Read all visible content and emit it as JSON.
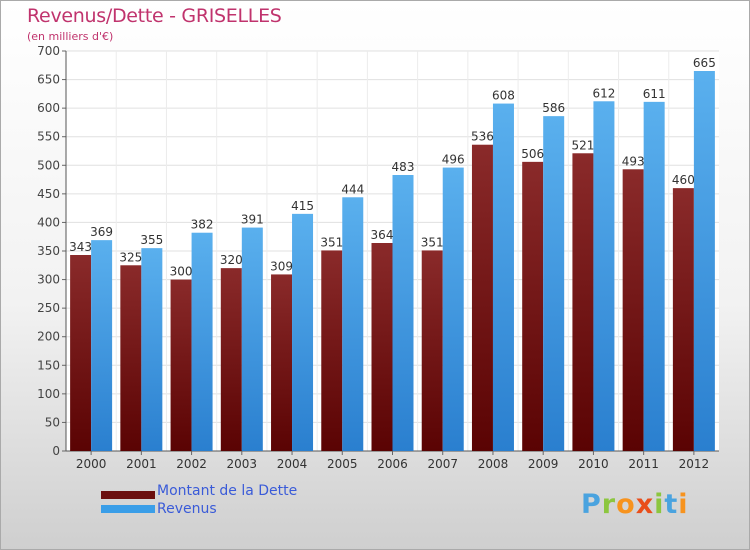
{
  "header": {
    "title": "Revenus/Dette - GRISELLES",
    "subtitle": "(en milliers d'€)"
  },
  "legend": {
    "items": [
      {
        "label": "Montant de la Dette",
        "color": "#6b0f0f"
      },
      {
        "label": "Revenus",
        "color": "#3a9ee8"
      }
    ]
  },
  "logo": {
    "text": "Proxiti",
    "letters": [
      {
        "ch": "P",
        "color": "#4aa3df"
      },
      {
        "ch": "r",
        "color": "#8cc63f"
      },
      {
        "ch": "o",
        "color": "#f7931e"
      },
      {
        "ch": "x",
        "color": "#e94e1b"
      },
      {
        "ch": "i",
        "color": "#8cc63f"
      },
      {
        "ch": "t",
        "color": "#4aa3df"
      },
      {
        "ch": "i",
        "color": "#f7931e"
      }
    ]
  },
  "chart_data": {
    "type": "bar",
    "title": "Revenus/Dette - GRISELLES",
    "subtitle": "(en milliers d'€)",
    "categories": [
      "2000",
      "2001",
      "2002",
      "2003",
      "2004",
      "2005",
      "2006",
      "2007",
      "2008",
      "2009",
      "2010",
      "2011",
      "2012"
    ],
    "series": [
      {
        "name": "Montant de la Dette",
        "color": "#6b0f0f",
        "values": [
          343,
          325,
          300,
          320,
          309,
          351,
          364,
          351,
          536,
          506,
          521,
          493,
          460
        ]
      },
      {
        "name": "Revenus",
        "color": "#3a9ee8",
        "values": [
          369,
          355,
          382,
          391,
          415,
          444,
          483,
          496,
          608,
          586,
          612,
          611,
          665
        ]
      }
    ],
    "ylim": [
      0,
      700
    ],
    "yticks": [
      0,
      50,
      100,
      150,
      200,
      250,
      300,
      350,
      400,
      450,
      500,
      550,
      600,
      650,
      700
    ],
    "grid": true,
    "legend_position": "bottom-left"
  }
}
